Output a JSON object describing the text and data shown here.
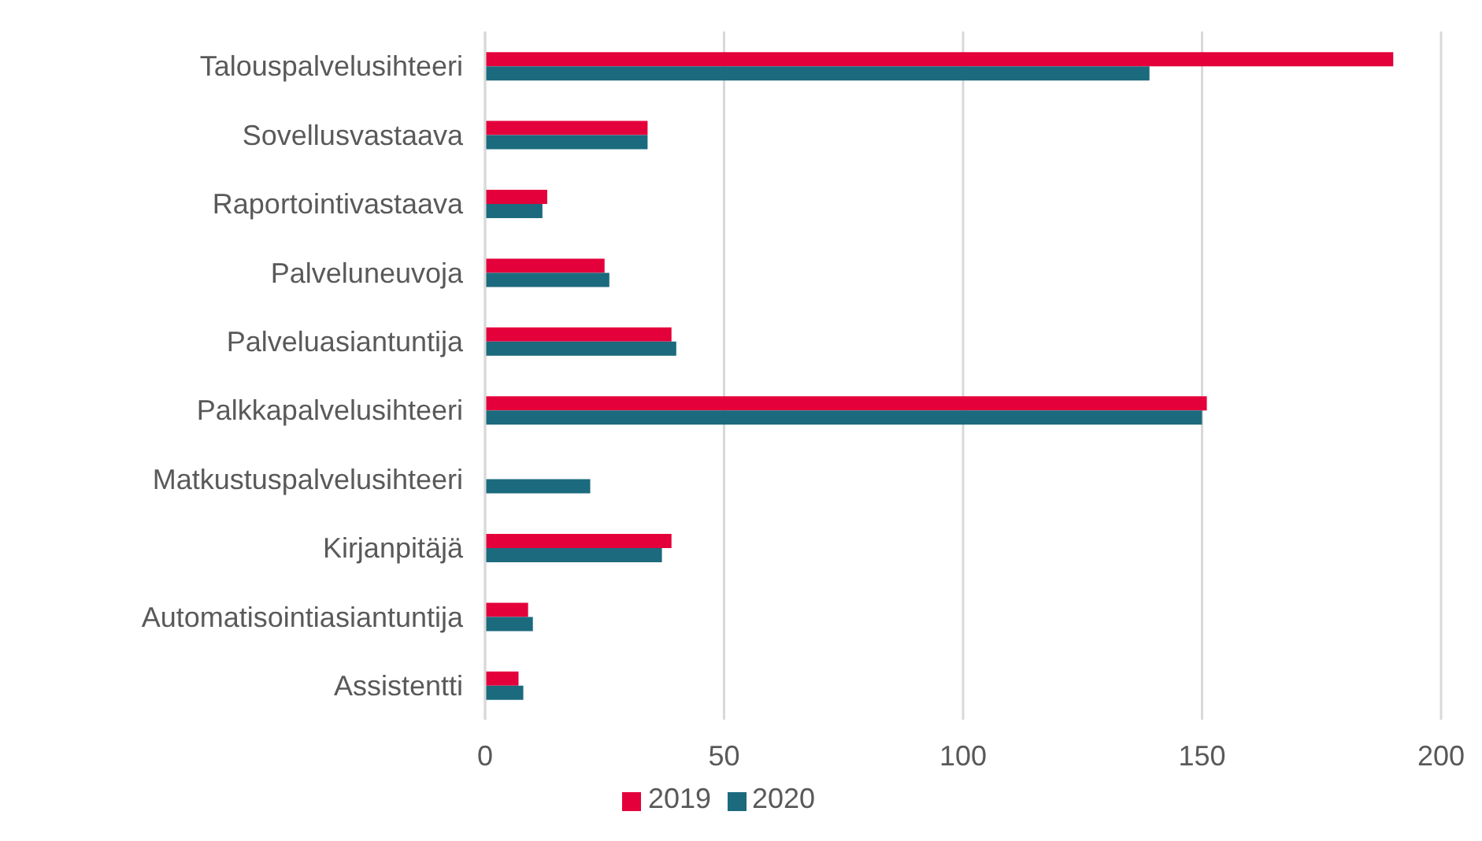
{
  "chart_data": {
    "type": "bar",
    "orientation": "horizontal",
    "categories": [
      "Talouspalvelusihteeri",
      "Sovellusvastaava",
      "Raportointivastaava",
      "Palveluneuvoja",
      "Palveluasiantuntija",
      "Palkkapalvelusihteeri",
      "Matkustuspalvelusihteeri",
      "Kirjanpitäjä",
      "Automatisointiasiantuntija",
      "Assistentti"
    ],
    "series": [
      {
        "name": "2019",
        "color": "#e4003b",
        "values": [
          190,
          34,
          13,
          25,
          39,
          151,
          null,
          39,
          9,
          7
        ]
      },
      {
        "name": "2020",
        "color": "#1b6a7e",
        "values": [
          139,
          34,
          12,
          26,
          40,
          150,
          22,
          37,
          10,
          8
        ]
      }
    ],
    "xlim": [
      0,
      200
    ],
    "xticks": [
      0,
      50,
      100,
      150,
      200
    ],
    "grid": "x",
    "legend": "bottom"
  }
}
